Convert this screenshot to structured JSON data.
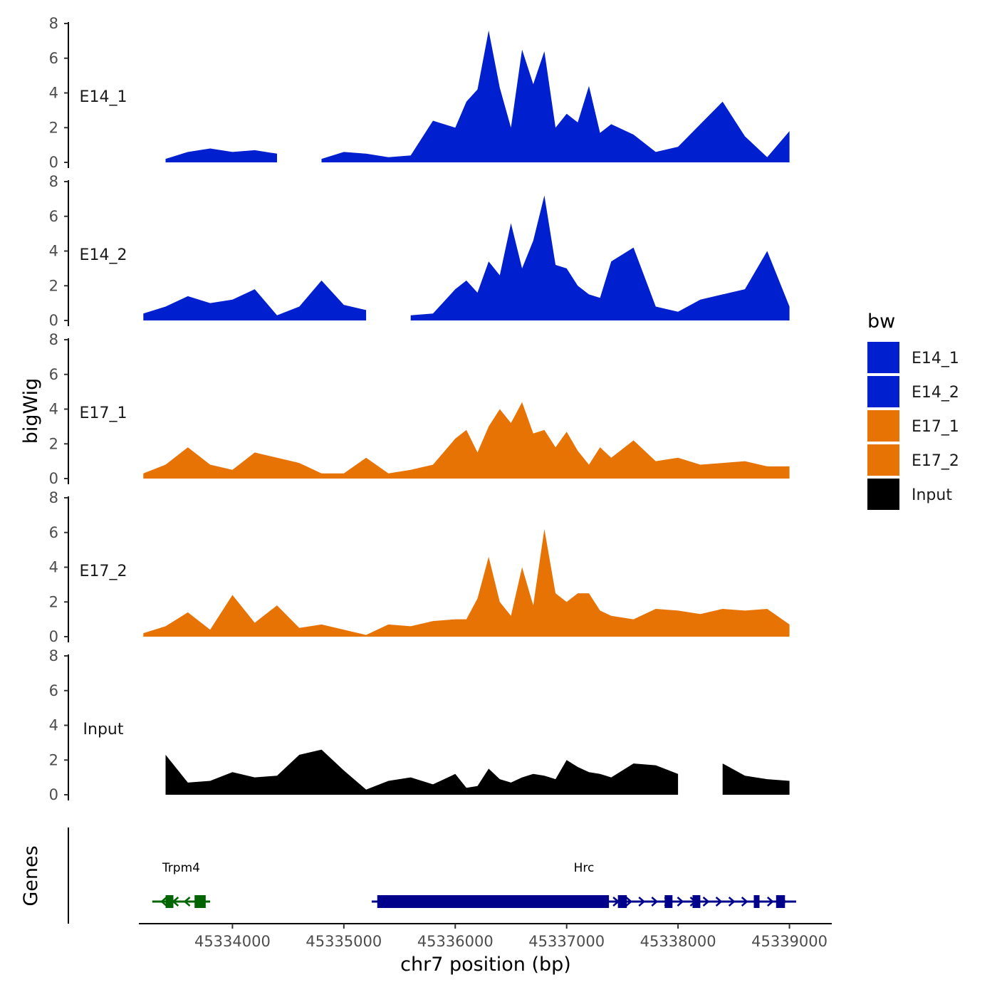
{
  "chart_data": {
    "type": "area",
    "title": "",
    "xlabel": "chr7 position (bp)",
    "ylabel": "bigWig",
    "genes_label": "Genes",
    "xlim": [
      45333160,
      45339380
    ],
    "ylim": [
      0,
      8
    ],
    "x_ticks": [
      45334000,
      45335000,
      45336000,
      45337000,
      45338000,
      45339000
    ],
    "x_tick_labels": [
      "45334000",
      "45335000",
      "45336000",
      "45337000",
      "45338000",
      "45339000"
    ],
    "y_ticks": [
      0,
      2,
      4,
      6,
      8
    ],
    "y_tick_labels": [
      "0",
      "2",
      "4",
      "6",
      "8"
    ],
    "legend": {
      "title": "bw",
      "placement": "right",
      "entries": [
        {
          "label": "E14_1",
          "color": "#0020D0"
        },
        {
          "label": "E14_2",
          "color": "#0020D0"
        },
        {
          "label": "E17_1",
          "color": "#E87305"
        },
        {
          "label": "E17_2",
          "color": "#E87305"
        },
        {
          "label": "Input",
          "color": "#000000"
        }
      ]
    },
    "x": [
      45333200,
      45333400,
      45333600,
      45333800,
      45334000,
      45334200,
      45334400,
      45334600,
      45334800,
      45335000,
      45335200,
      45335400,
      45335600,
      45335800,
      45336000,
      45336100,
      45336200,
      45336300,
      45336400,
      45336500,
      45336600,
      45336700,
      45336800,
      45336900,
      45337000,
      45337100,
      45337200,
      45337300,
      45337400,
      45337600,
      45337800,
      45338000,
      45338200,
      45338400,
      45338600,
      45338800,
      45339000
    ],
    "series": [
      {
        "name": "E14_1",
        "color": "#0020D0",
        "values": [
          null,
          0.2,
          0.6,
          0.8,
          0.6,
          0.7,
          0.5,
          null,
          0.2,
          0.6,
          0.5,
          0.3,
          0.4,
          2.4,
          2.0,
          3.5,
          4.2,
          7.6,
          4.3,
          2.0,
          6.5,
          4.5,
          6.4,
          2.0,
          2.8,
          2.3,
          4.4,
          1.7,
          2.2,
          1.6,
          0.6,
          0.9,
          2.2,
          3.5,
          1.5,
          0.3,
          1.8
        ]
      },
      {
        "name": "E14_2",
        "color": "#0020D0",
        "values": [
          0.4,
          0.8,
          1.4,
          1.0,
          1.2,
          1.8,
          0.3,
          0.8,
          2.3,
          0.9,
          0.6,
          null,
          0.3,
          0.4,
          1.8,
          2.3,
          1.6,
          3.4,
          2.6,
          5.6,
          3.0,
          4.6,
          7.2,
          3.2,
          3.0,
          2.0,
          1.5,
          1.3,
          3.4,
          4.2,
          0.8,
          0.5,
          1.2,
          1.5,
          1.8,
          4.0,
          0.8
        ]
      },
      {
        "name": "E17_1",
        "color": "#E87305",
        "values": [
          0.3,
          0.8,
          1.8,
          0.8,
          0.5,
          1.5,
          1.2,
          0.9,
          0.3,
          0.3,
          1.2,
          0.3,
          0.5,
          0.8,
          2.3,
          2.8,
          1.5,
          3.0,
          4.0,
          3.2,
          4.4,
          2.6,
          2.8,
          1.8,
          2.7,
          1.6,
          0.8,
          1.8,
          1.2,
          2.2,
          1.0,
          1.2,
          0.8,
          0.9,
          1.0,
          0.7,
          0.7
        ]
      },
      {
        "name": "E17_2",
        "color": "#E87305",
        "values": [
          0.2,
          0.6,
          1.4,
          0.4,
          2.4,
          0.8,
          1.8,
          0.5,
          0.7,
          0.4,
          0.1,
          0.7,
          0.6,
          0.9,
          1.0,
          1.0,
          2.2,
          4.6,
          2.0,
          1.2,
          4.0,
          1.8,
          6.2,
          2.5,
          2.0,
          2.5,
          2.5,
          1.5,
          1.2,
          1.0,
          1.6,
          1.5,
          1.3,
          1.6,
          1.5,
          1.6,
          0.7
        ]
      },
      {
        "name": "Input",
        "color": "#000000",
        "values": [
          null,
          2.3,
          0.7,
          0.8,
          1.3,
          1.0,
          1.1,
          2.3,
          2.6,
          1.4,
          0.3,
          0.8,
          1.0,
          0.6,
          1.2,
          0.4,
          0.5,
          1.5,
          0.9,
          0.7,
          1.0,
          1.2,
          1.1,
          0.9,
          2.0,
          1.6,
          1.3,
          1.2,
          1.0,
          1.8,
          1.7,
          1.2,
          null,
          1.8,
          1.1,
          0.9,
          0.8
        ]
      }
    ],
    "genes": [
      {
        "name": "Trpm4",
        "strand": "-",
        "color": "#006400",
        "start": 45333280,
        "end": 45333800,
        "exons": [
          [
            45333400,
            45333470
          ],
          [
            45333660,
            45333760
          ]
        ]
      },
      {
        "name": "Hrc",
        "strand": "+",
        "color": "#00008B",
        "start": 45335250,
        "end": 45339060,
        "exons": [
          [
            45335300,
            45337380
          ],
          [
            45337460,
            45337540
          ],
          [
            45337880,
            45337950
          ],
          [
            45338130,
            45338200
          ],
          [
            45338680,
            45338720
          ],
          [
            45338880,
            45338960
          ]
        ]
      }
    ]
  }
}
